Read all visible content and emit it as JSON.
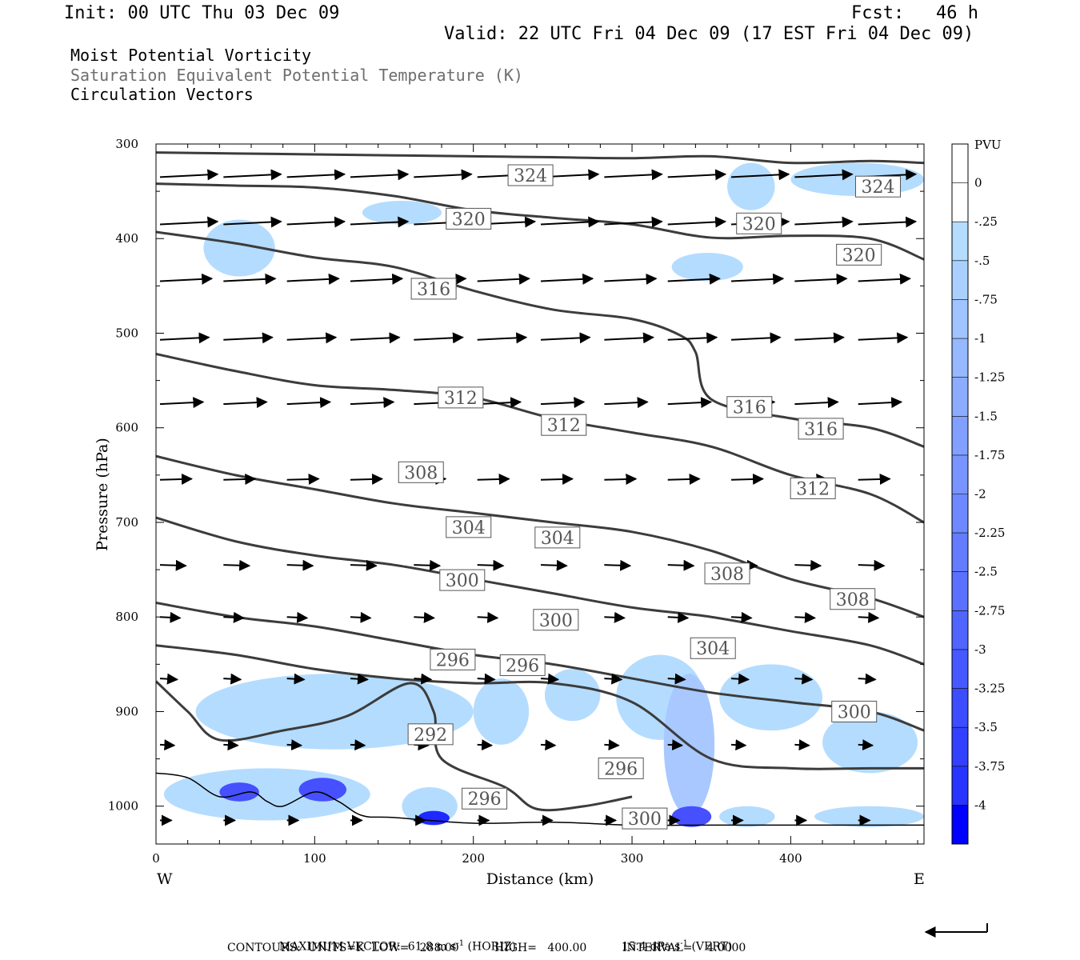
{
  "header": {
    "init": "Init: 00 UTC Thu 03 Dec 09",
    "fcst": "Fcst:   46 h",
    "valid": "Valid: 22 UTC Fri 04 Dec 09 (17 EST Fri 04 Dec 09)"
  },
  "fields": {
    "line1": "Moist Potential Vorticity",
    "line2": "Saturation Equivalent Potential Temperature (K)",
    "line3": "Circulation Vectors"
  },
  "colors": {
    "contour": "#3c3c3c",
    "field_label_gray": "#6e6e6e",
    "mpv_lightest": "#b4dcff"
  },
  "chart_data": {
    "type": "cross-section",
    "xlabel": "Distance (km)",
    "ylabel": "Pressure (hPa)",
    "xlim": [
      0,
      484
    ],
    "ylim": [
      1040,
      300
    ],
    "xticks": [
      0,
      100,
      200,
      300,
      400
    ],
    "yticks": [
      300,
      400,
      500,
      600,
      700,
      800,
      900,
      1000
    ],
    "x_end_labels": {
      "left": "W",
      "right": "E"
    },
    "colorbar": {
      "title": "PVU",
      "labels": [
        "0",
        "-.25",
        "-.5",
        "-.75",
        "-1",
        "-1.25",
        "-1.5",
        "-1.75",
        "-2",
        "-2.25",
        "-2.5",
        "-2.75",
        "-3",
        "-3.25",
        "-3.5",
        "-3.75",
        "-4"
      ],
      "colors": [
        "#ffffff",
        "#ffffff",
        "#b4dcff",
        "#aad0ff",
        "#a0c4ff",
        "#96b8ff",
        "#8cacff",
        "#82a0ff",
        "#7894ff",
        "#6e88ff",
        "#647cff",
        "#5a70ff",
        "#5064ff",
        "#4658ff",
        "#3c4cff",
        "#3240ff",
        "#2834ff",
        "#0000ff"
      ]
    },
    "theta_e_contours": [
      {
        "label": "324",
        "points": [
          [
            0,
            309
          ],
          [
            50,
            310
          ],
          [
            100,
            311
          ],
          [
            150,
            312
          ],
          [
            200,
            313
          ],
          [
            250,
            314
          ],
          [
            300,
            315
          ],
          [
            350,
            313
          ],
          [
            400,
            320
          ],
          [
            450,
            318
          ],
          [
            484,
            320
          ]
        ]
      },
      {
        "label": "320",
        "points": [
          [
            0,
            342
          ],
          [
            50,
            344
          ],
          [
            100,
            346
          ],
          [
            150,
            355
          ],
          [
            200,
            370
          ],
          [
            250,
            378
          ],
          [
            300,
            385
          ],
          [
            350,
            399
          ],
          [
            400,
            397
          ],
          [
            450,
            400
          ],
          [
            484,
            422
          ]
        ]
      },
      {
        "label": "316",
        "points": [
          [
            0,
            393
          ],
          [
            50,
            405
          ],
          [
            100,
            420
          ],
          [
            150,
            430
          ],
          [
            200,
            455
          ],
          [
            250,
            475
          ],
          [
            300,
            485
          ],
          [
            330,
            502
          ],
          [
            340,
            520
          ],
          [
            350,
            570
          ],
          [
            400,
            590
          ],
          [
            450,
            600
          ],
          [
            484,
            620
          ]
        ]
      },
      {
        "label": "312",
        "points": [
          [
            0,
            522
          ],
          [
            50,
            540
          ],
          [
            100,
            555
          ],
          [
            150,
            560
          ],
          [
            200,
            568
          ],
          [
            250,
            590
          ],
          [
            300,
            605
          ],
          [
            350,
            620
          ],
          [
            400,
            650
          ],
          [
            450,
            670
          ],
          [
            484,
            700
          ]
        ]
      },
      {
        "label": "308",
        "points": [
          [
            0,
            630
          ],
          [
            50,
            650
          ],
          [
            100,
            665
          ],
          [
            150,
            680
          ],
          [
            200,
            690
          ],
          [
            250,
            700
          ],
          [
            300,
            710
          ],
          [
            350,
            730
          ],
          [
            400,
            760
          ],
          [
            450,
            780
          ],
          [
            484,
            800
          ]
        ]
      },
      {
        "label": "304",
        "points": [
          [
            0,
            695
          ],
          [
            50,
            720
          ],
          [
            100,
            735
          ],
          [
            150,
            745
          ],
          [
            200,
            760
          ],
          [
            250,
            775
          ],
          [
            300,
            790
          ],
          [
            350,
            800
          ],
          [
            400,
            815
          ],
          [
            450,
            830
          ],
          [
            484,
            850
          ]
        ]
      },
      {
        "label": "300",
        "points": [
          [
            0,
            785
          ],
          [
            50,
            800
          ],
          [
            100,
            810
          ],
          [
            150,
            825
          ],
          [
            200,
            840
          ],
          [
            250,
            850
          ],
          [
            300,
            865
          ],
          [
            350,
            880
          ],
          [
            400,
            890
          ],
          [
            450,
            900
          ],
          [
            484,
            920
          ]
        ]
      },
      {
        "label": "296",
        "points": [
          [
            0,
            830
          ],
          [
            50,
            840
          ],
          [
            100,
            855
          ],
          [
            150,
            865
          ],
          [
            200,
            870
          ],
          [
            250,
            870
          ],
          [
            300,
            890
          ],
          [
            350,
            950
          ],
          [
            400,
            960
          ],
          [
            450,
            960
          ],
          [
            484,
            960
          ]
        ]
      },
      {
        "label": "292",
        "points": [
          [
            0,
            868
          ],
          [
            20,
            900
          ],
          [
            40,
            930
          ],
          [
            80,
            920
          ],
          [
            120,
            905
          ],
          [
            160,
            870
          ],
          [
            175,
            900
          ],
          [
            180,
            950
          ],
          [
            220,
            980
          ],
          [
            240,
            1003
          ],
          [
            270,
            1000
          ],
          [
            300,
            990
          ]
        ]
      }
    ],
    "contour_labels": [
      {
        "text": "324",
        "x": 236,
        "p": 333
      },
      {
        "text": "324",
        "x": 455,
        "p": 345
      },
      {
        "text": "320",
        "x": 197,
        "p": 379
      },
      {
        "text": "320",
        "x": 380,
        "p": 384
      },
      {
        "text": "320",
        "x": 443,
        "p": 417
      },
      {
        "text": "316",
        "x": 175,
        "p": 453
      },
      {
        "text": "316",
        "x": 374,
        "p": 578
      },
      {
        "text": "316",
        "x": 419,
        "p": 601
      },
      {
        "text": "312",
        "x": 192,
        "p": 568
      },
      {
        "text": "312",
        "x": 257,
        "p": 597
      },
      {
        "text": "312",
        "x": 414,
        "p": 664
      },
      {
        "text": "308",
        "x": 167,
        "p": 647
      },
      {
        "text": "308",
        "x": 360,
        "p": 754
      },
      {
        "text": "308",
        "x": 439,
        "p": 781
      },
      {
        "text": "304",
        "x": 197,
        "p": 705
      },
      {
        "text": "304",
        "x": 253,
        "p": 716
      },
      {
        "text": "304",
        "x": 351,
        "p": 833
      },
      {
        "text": "300",
        "x": 193,
        "p": 761
      },
      {
        "text": "300",
        "x": 252,
        "p": 803
      },
      {
        "text": "300",
        "x": 440,
        "p": 900
      },
      {
        "text": "300",
        "x": 308,
        "p": 1013
      },
      {
        "text": "296",
        "x": 187,
        "p": 845
      },
      {
        "text": "296",
        "x": 231,
        "p": 851
      },
      {
        "text": "296",
        "x": 293,
        "p": 960
      },
      {
        "text": "296",
        "x": 207,
        "p": 992
      },
      {
        "text": "292",
        "x": 173,
        "p": 924
      }
    ],
    "mpv_regions": [
      {
        "level": -0.5,
        "x": [
          30,
          75
        ],
        "p": [
          380,
          440
        ]
      },
      {
        "level": -0.5,
        "x": [
          130,
          180
        ],
        "p": [
          360,
          385
        ]
      },
      {
        "level": -0.5,
        "x": [
          325,
          370
        ],
        "p": [
          415,
          445
        ]
      },
      {
        "level": -0.5,
        "x": [
          360,
          390
        ],
        "p": [
          320,
          370
        ]
      },
      {
        "level": -0.5,
        "x": [
          400,
          484
        ],
        "p": [
          320,
          355
        ]
      },
      {
        "level": -0.5,
        "x": [
          25,
          200
        ],
        "p": [
          860,
          940
        ]
      },
      {
        "level": -0.5,
        "x": [
          200,
          235
        ],
        "p": [
          865,
          935
        ]
      },
      {
        "level": -0.5,
        "x": [
          245,
          280
        ],
        "p": [
          855,
          910
        ]
      },
      {
        "level": -0.5,
        "x": [
          290,
          345
        ],
        "p": [
          840,
          930
        ]
      },
      {
        "level": -0.75,
        "x": [
          320,
          352
        ],
        "p": [
          860,
          1010
        ]
      },
      {
        "level": -0.5,
        "x": [
          355,
          420
        ],
        "p": [
          850,
          920
        ]
      },
      {
        "level": -0.5,
        "x": [
          420,
          480
        ],
        "p": [
          900,
          965
        ]
      },
      {
        "level": -0.5,
        "x": [
          5,
          135
        ],
        "p": [
          960,
          1015
        ]
      },
      {
        "level": -2.5,
        "x": [
          40,
          65
        ],
        "p": [
          975,
          995
        ]
      },
      {
        "level": -2.5,
        "x": [
          90,
          120
        ],
        "p": [
          970,
          995
        ]
      },
      {
        "level": -0.5,
        "x": [
          155,
          190
        ],
        "p": [
          980,
          1020
        ]
      },
      {
        "level": -3.0,
        "x": [
          165,
          185
        ],
        "p": [
          1005,
          1020
        ]
      },
      {
        "level": -3.25,
        "x": [
          295,
          310
        ],
        "p": [
          1010,
          1022
        ]
      },
      {
        "level": -2.75,
        "x": [
          325,
          350
        ],
        "p": [
          1000,
          1022
        ]
      },
      {
        "level": -0.5,
        "x": [
          355,
          390
        ],
        "p": [
          1000,
          1022
        ]
      },
      {
        "level": -0.5,
        "x": [
          415,
          484
        ],
        "p": [
          1000,
          1022
        ]
      }
    ],
    "vector_rows": [
      {
        "p": 335,
        "u": 1.0,
        "w": -0.05
      },
      {
        "p": 385,
        "u": 1.0,
        "w": -0.05
      },
      {
        "p": 445,
        "u": 0.9,
        "w": -0.05
      },
      {
        "p": 507,
        "u": 0.85,
        "w": -0.05
      },
      {
        "p": 575,
        "u": 0.75,
        "w": -0.05
      },
      {
        "p": 655,
        "u": 0.55,
        "w": -0.03
      },
      {
        "p": 745,
        "u": 0.45,
        "w": 0.03
      },
      {
        "p": 800,
        "u": 0.35,
        "w": 0.05
      },
      {
        "p": 865,
        "u": 0.3,
        "w": 0.06
      },
      {
        "p": 935,
        "u": 0.25,
        "w": 0.05
      },
      {
        "p": 1015,
        "u": 0.2,
        "w": 0.0
      }
    ],
    "terrain_p": [
      [
        0,
        965
      ],
      [
        20,
        970
      ],
      [
        40,
        990
      ],
      [
        60,
        985
      ],
      [
        70,
        995
      ],
      [
        80,
        1000
      ],
      [
        100,
        985
      ],
      [
        115,
        995
      ],
      [
        130,
        1010
      ],
      [
        150,
        1012
      ],
      [
        200,
        1018
      ],
      [
        250,
        1017
      ],
      [
        300,
        1020
      ],
      [
        350,
        1020
      ],
      [
        400,
        1020
      ],
      [
        484,
        1020
      ]
    ]
  },
  "footer": {
    "max_vector_prefix": "MAXIMUM VECTOR:  61.8 m s",
    "horiz": "(HORIZ)",
    "vert_prefix": "15.4 dPa s",
    "vert": "(VERT)",
    "exp": "-1",
    "contours": "CONTOURS:  UNITS=K  LOW=   288.00          HIGH=   400.00          INTERVAL=    4.0000"
  }
}
